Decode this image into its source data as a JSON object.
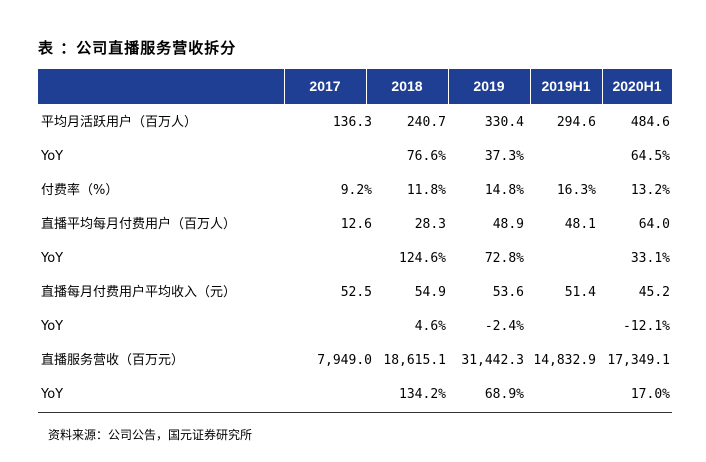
{
  "title": "表 ：公司直播服务营收拆分",
  "table": {
    "columns": [
      "2017",
      "2018",
      "2019",
      "2019H1",
      "2020H1"
    ],
    "rows": [
      {
        "label": "平均月活跃用户（百万人）",
        "values": [
          "136.3",
          "240.7",
          "330.4",
          "294.6",
          "484.6"
        ]
      },
      {
        "label": "YoY",
        "values": [
          "",
          "76.6%",
          "37.3%",
          "",
          "64.5%"
        ]
      },
      {
        "label": "付费率（%）",
        "values": [
          "9.2%",
          "11.8%",
          "14.8%",
          "16.3%",
          "13.2%"
        ]
      },
      {
        "label": "直播平均每月付费用户（百万人）",
        "values": [
          "12.6",
          "28.3",
          "48.9",
          "48.1",
          "64.0"
        ]
      },
      {
        "label": "YoY",
        "values": [
          "",
          "124.6%",
          "72.8%",
          "",
          "33.1%"
        ]
      },
      {
        "label": "直播每月付费用户平均收入（元）",
        "values": [
          "52.5",
          "54.9",
          "53.6",
          "51.4",
          "45.2"
        ]
      },
      {
        "label": "YoY",
        "values": [
          "",
          "4.6%",
          "-2.4%",
          "",
          "-12.1%"
        ]
      },
      {
        "label": "直播服务营收（百万元）",
        "values": [
          "7,949.0",
          "18,615.1",
          "31,442.3",
          "14,832.9",
          "17,349.1"
        ]
      },
      {
        "label": "YoY",
        "values": [
          "",
          "134.2%",
          "68.9%",
          "",
          "17.0%"
        ]
      }
    ]
  },
  "source": "资料来源：公司公告，国元证券研究所",
  "colors": {
    "header_bg": "#1f3f94",
    "header_text": "#ffffff",
    "rule": "#333333"
  }
}
